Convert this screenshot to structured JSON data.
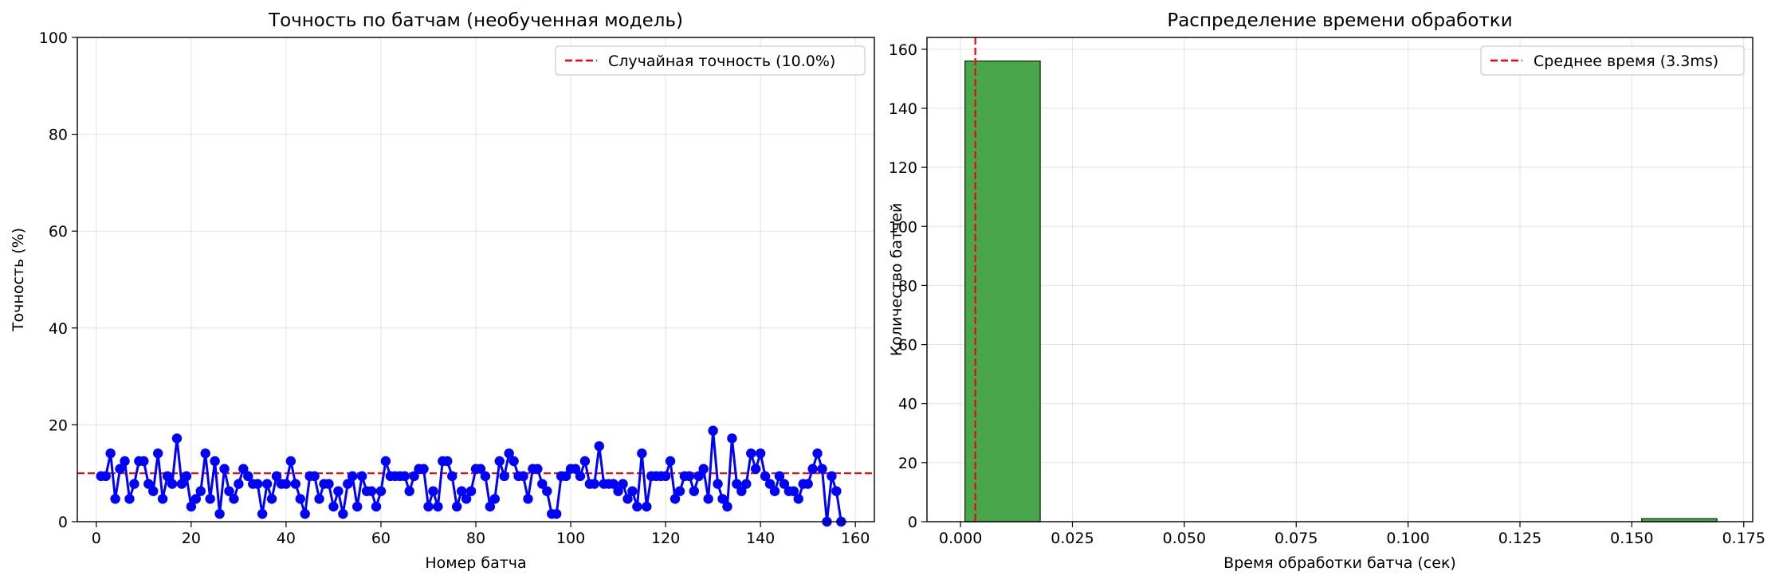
{
  "chart_data": [
    {
      "type": "line",
      "title": "Точность по батчам (необученная модель)",
      "xlabel": "Номер батча",
      "ylabel": "Точность (%)",
      "xlim": [
        -4,
        164
      ],
      "ylim": [
        0,
        100
      ],
      "xticks": [
        0,
        20,
        40,
        60,
        80,
        100,
        120,
        140,
        160
      ],
      "yticks": [
        0,
        20,
        40,
        60,
        80,
        100
      ],
      "grid": true,
      "legend_position": "top-right",
      "series": [
        {
          "name": "",
          "color": "#0000ff",
          "marker": "circle",
          "x": [
            1,
            2,
            3,
            4,
            5,
            6,
            7,
            8,
            9,
            10,
            11,
            12,
            13,
            14,
            15,
            16,
            17,
            18,
            19,
            20,
            21,
            22,
            23,
            24,
            25,
            26,
            27,
            28,
            29,
            30,
            31,
            32,
            33,
            34,
            35,
            36,
            37,
            38,
            39,
            40,
            41,
            42,
            43,
            44,
            45,
            46,
            47,
            48,
            49,
            50,
            51,
            52,
            53,
            54,
            55,
            56,
            57,
            58,
            59,
            60,
            61,
            62,
            63,
            64,
            65,
            66,
            67,
            68,
            69,
            70,
            71,
            72,
            73,
            74,
            75,
            76,
            77,
            78,
            79,
            80,
            81,
            82,
            83,
            84,
            85,
            86,
            87,
            88,
            89,
            90,
            91,
            92,
            93,
            94,
            95,
            96,
            97,
            98,
            99,
            100,
            101,
            102,
            103,
            104,
            105,
            106,
            107,
            108,
            109,
            110,
            111,
            112,
            113,
            114,
            115,
            116,
            117,
            118,
            119,
            120,
            121,
            122,
            123,
            124,
            125,
            126,
            127,
            128,
            129,
            130,
            131,
            132,
            133,
            134,
            135,
            136,
            137,
            138,
            139,
            140,
            141,
            142,
            143,
            144,
            145,
            146,
            147,
            148,
            149,
            150,
            151,
            152,
            153,
            154,
            155,
            156,
            157
          ],
          "y": [
            9.4,
            9.4,
            14.1,
            4.7,
            10.9,
            12.5,
            4.7,
            7.8,
            12.5,
            12.5,
            7.8,
            6.3,
            14.1,
            4.7,
            9.4,
            7.8,
            17.2,
            7.8,
            9.4,
            3.1,
            4.7,
            6.3,
            14.1,
            4.7,
            12.5,
            1.6,
            10.9,
            6.3,
            4.7,
            7.8,
            10.9,
            9.4,
            7.8,
            7.8,
            1.6,
            7.8,
            4.7,
            9.4,
            7.8,
            7.8,
            12.5,
            7.8,
            4.7,
            1.6,
            9.4,
            9.4,
            4.7,
            7.8,
            7.8,
            3.1,
            6.3,
            1.6,
            7.8,
            9.4,
            3.1,
            9.4,
            6.3,
            6.3,
            3.1,
            6.3,
            12.5,
            9.4,
            9.4,
            9.4,
            9.4,
            6.3,
            9.4,
            10.9,
            10.9,
            3.1,
            6.3,
            3.1,
            12.5,
            12.5,
            9.4,
            3.1,
            6.3,
            4.7,
            6.3,
            10.9,
            10.9,
            9.4,
            3.1,
            4.7,
            12.5,
            9.4,
            14.1,
            12.5,
            9.4,
            9.4,
            4.7,
            10.9,
            10.9,
            7.8,
            6.3,
            1.6,
            1.6,
            9.4,
            9.4,
            10.9,
            10.9,
            9.4,
            12.5,
            7.8,
            7.8,
            15.6,
            7.8,
            7.8,
            7.8,
            6.3,
            7.8,
            4.7,
            6.3,
            3.1,
            14.1,
            3.1,
            9.4,
            9.4,
            9.4,
            9.4,
            12.5,
            4.7,
            6.3,
            9.4,
            9.4,
            6.3,
            9.4,
            10.9,
            4.7,
            18.8,
            7.8,
            4.7,
            3.1,
            17.2,
            7.8,
            6.3,
            7.8,
            14.1,
            10.9,
            14.1,
            9.4,
            7.8,
            6.3,
            9.4,
            7.8,
            6.3,
            6.3,
            4.7,
            7.8,
            7.8,
            10.9,
            14.1,
            10.9,
            0.0,
            9.4,
            6.3,
            0.0
          ]
        }
      ],
      "reference_lines": [
        {
          "orientation": "horizontal",
          "value": 10.0,
          "color": "#ff0000",
          "style": "dashed",
          "label": "Случайная точность (10.0%)"
        }
      ]
    },
    {
      "type": "bar",
      "subtype": "histogram",
      "title": "Распределение времени обработки",
      "xlabel": "Время обработки батча (сек)",
      "ylabel": "Количество батчей",
      "xlim": [
        -0.0075,
        0.177
      ],
      "ylim": [
        0,
        164
      ],
      "xticks": [
        "0.000",
        "0.025",
        "0.050",
        "0.075",
        "0.100",
        "0.125",
        "0.150",
        "0.175"
      ],
      "yticks": [
        0,
        20,
        40,
        60,
        80,
        100,
        120,
        140,
        160
      ],
      "grid": true,
      "legend_position": "top-right",
      "bar_color": "#4aa64a",
      "bins": [
        0.001,
        0.0178,
        0.0346,
        0.0514,
        0.0682,
        0.085,
        0.1018,
        0.1186,
        0.1354,
        0.1522,
        0.169
      ],
      "counts": [
        156,
        0,
        0,
        0,
        0,
        0,
        0,
        0,
        0,
        1
      ],
      "reference_lines": [
        {
          "orientation": "vertical",
          "value": 0.0033,
          "color": "#ff0000",
          "style": "dashed",
          "label": "Среднее время (3.3ms)"
        }
      ]
    }
  ]
}
